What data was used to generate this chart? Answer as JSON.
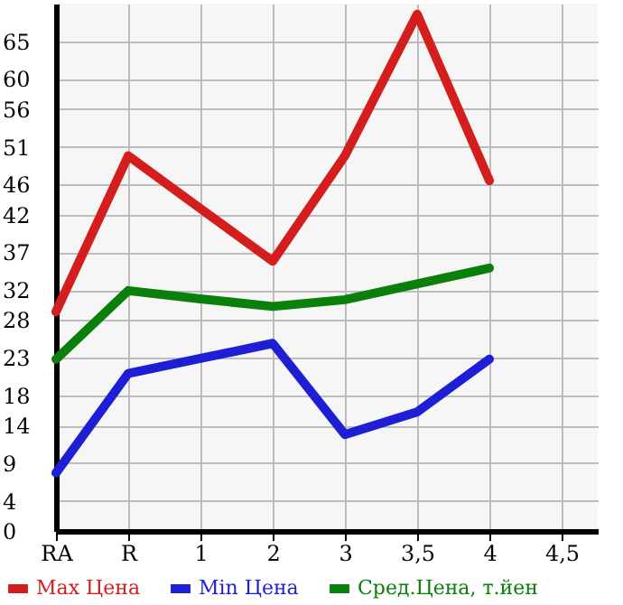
{
  "chart_data": {
    "type": "line",
    "categories": [
      "RA",
      "R",
      "1",
      "2",
      "3",
      "3,5",
      "4",
      "4,5"
    ],
    "series": [
      {
        "name": "Max Цена",
        "color": "#d41e1e",
        "values": [
          29.1,
          49.8,
          42.8,
          35.8,
          49.8,
          68.6,
          46.5,
          null
        ]
      },
      {
        "name": "Min Цена",
        "color": "#1e1ed4",
        "values": [
          7.7,
          20.9,
          22.9,
          24.9,
          12.8,
          15.8,
          22.8,
          null
        ]
      },
      {
        "name": "Сред.Цена, т.йен",
        "color": "#0a800a",
        "values": [
          22.8,
          31.9,
          30.8,
          29.8,
          30.7,
          32.8,
          34.9,
          null
        ]
      }
    ],
    "ylim": [
      0,
      70
    ],
    "yticks": [
      0,
      4,
      9,
      14,
      18,
      23,
      28,
      32,
      37,
      42,
      46,
      51,
      56,
      60,
      65
    ],
    "grid": true,
    "legend": "bottom",
    "marker": "none",
    "line_style": "solid"
  }
}
